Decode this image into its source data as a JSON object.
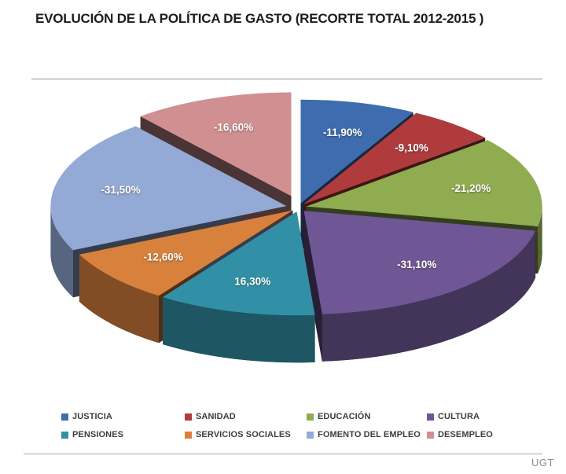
{
  "page": {
    "title": "EVOLUCIÓN DE LA POLÍTICA DE GASTO (RECORTE TOTAL 2012-2015 )",
    "source": "UGT"
  },
  "chart_data": {
    "type": "pie",
    "style": "3d-exploded",
    "title": "EVOLUCIÓN DE LA POLÍTICA DE GASTO (RECORTE TOTAL 2012-2015 )",
    "unit": "%",
    "decimal_separator": ",",
    "legend_position": "bottom",
    "label_text_color": "#ffffff",
    "start_angle": "12-oclock",
    "direction": "clockwise",
    "slices": [
      {
        "label": "JUSTICIA",
        "value": -11.9,
        "display": "-11,90%",
        "color": "#3E6CAE",
        "emphasis": 0
      },
      {
        "label": "SANIDAD",
        "value": -9.1,
        "display": "-9,10%",
        "color": "#B03B3D",
        "emphasis": 0
      },
      {
        "label": "EDUCACIÓN",
        "value": -21.2,
        "display": "-21,20%",
        "color": "#8FAC51",
        "emphasis": 0
      },
      {
        "label": "CULTURA",
        "value": -31.1,
        "display": "-31,10%",
        "color": "#6F5796",
        "emphasis": 0
      },
      {
        "label": "PENSIONES",
        "value": 16.3,
        "display": "16,30%",
        "color": "#3290A6",
        "emphasis": 0
      },
      {
        "label": "SERVICIOS SOCIALES",
        "value": -12.6,
        "display": "-12,60%",
        "color": "#D8813C",
        "emphasis": 0
      },
      {
        "label": "FOMENTO DEL EMPLEO",
        "value": -31.5,
        "display": "-31,50%",
        "color": "#93A9D6",
        "emphasis": 1
      },
      {
        "label": "DESEMPLEO",
        "value": -16.6,
        "display": "-16,60%",
        "color": "#D09092",
        "emphasis": 2
      }
    ]
  }
}
